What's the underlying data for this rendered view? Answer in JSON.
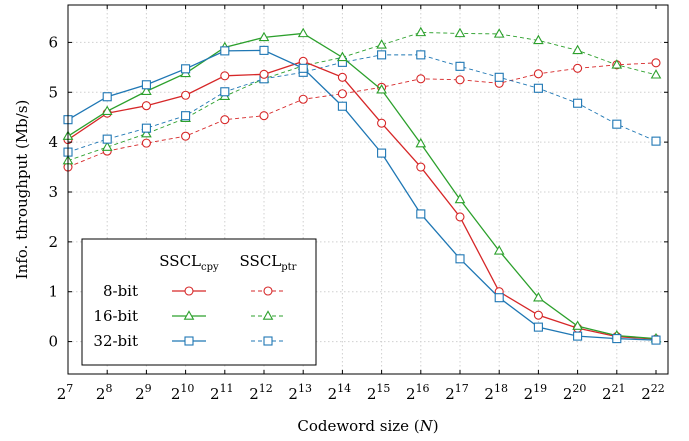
{
  "chart_data": {
    "type": "line",
    "xlabel": "Codeword size (N)",
    "ylabel": "Info. throughput (Mb/s)",
    "ylim": [
      -0.65,
      6.75
    ],
    "grid": true,
    "legend_placement": "bottom-left",
    "x_base": "2",
    "x_exponents": [
      7,
      8,
      9,
      10,
      11,
      12,
      13,
      14,
      15,
      16,
      17,
      18,
      19,
      20,
      21,
      22
    ],
    "y_ticks": [
      0,
      1,
      2,
      3,
      4,
      5,
      6
    ],
    "legend_columns": [
      {
        "base": "SSCL",
        "sub": "cpy"
      },
      {
        "base": "SSCL",
        "sub": "ptr"
      }
    ],
    "legend_rows": [
      "8-bit",
      "16-bit",
      "32-bit"
    ],
    "series": [
      {
        "bits": "8-bit",
        "variant": "cpy",
        "color": "#d62728",
        "marker": "circle",
        "dashed": false,
        "values": [
          4.05,
          4.58,
          4.73,
          4.94,
          5.33,
          5.36,
          5.62,
          5.3,
          4.38,
          3.5,
          2.5,
          1.0,
          0.53,
          0.27,
          0.1,
          0.05
        ]
      },
      {
        "bits": "16-bit",
        "variant": "cpy",
        "color": "#2ca02c",
        "marker": "triangle",
        "dashed": false,
        "values": [
          4.12,
          4.62,
          5.02,
          5.38,
          5.9,
          6.1,
          6.18,
          5.7,
          5.05,
          3.97,
          2.85,
          1.82,
          0.88,
          0.31,
          0.12,
          0.06
        ]
      },
      {
        "bits": "32-bit",
        "variant": "cpy",
        "color": "#1f77b4",
        "marker": "square",
        "dashed": false,
        "values": [
          4.45,
          4.91,
          5.15,
          5.47,
          5.83,
          5.84,
          5.48,
          4.72,
          3.78,
          2.56,
          1.66,
          0.88,
          0.29,
          0.11,
          0.06,
          0.03
        ]
      },
      {
        "bits": "8-bit",
        "variant": "ptr",
        "color": "#d62728",
        "marker": "circle",
        "dashed": true,
        "values": [
          3.5,
          3.82,
          3.98,
          4.12,
          4.45,
          4.53,
          4.86,
          4.97,
          5.1,
          5.27,
          5.25,
          5.18,
          5.37,
          5.48,
          5.55,
          5.59
        ]
      },
      {
        "bits": "16-bit",
        "variant": "ptr",
        "color": "#2ca02c",
        "marker": "triangle",
        "dashed": true,
        "values": [
          3.63,
          3.9,
          4.17,
          4.48,
          4.92,
          5.27,
          5.53,
          5.7,
          5.95,
          6.2,
          6.18,
          6.17,
          6.04,
          5.84,
          5.55,
          5.35
        ]
      },
      {
        "bits": "32-bit",
        "variant": "ptr",
        "color": "#1f77b4",
        "marker": "square",
        "dashed": true,
        "values": [
          3.8,
          4.06,
          4.28,
          4.53,
          5.01,
          5.27,
          5.4,
          5.6,
          5.75,
          5.75,
          5.52,
          5.3,
          5.08,
          4.78,
          4.36,
          4.02
        ]
      }
    ]
  }
}
